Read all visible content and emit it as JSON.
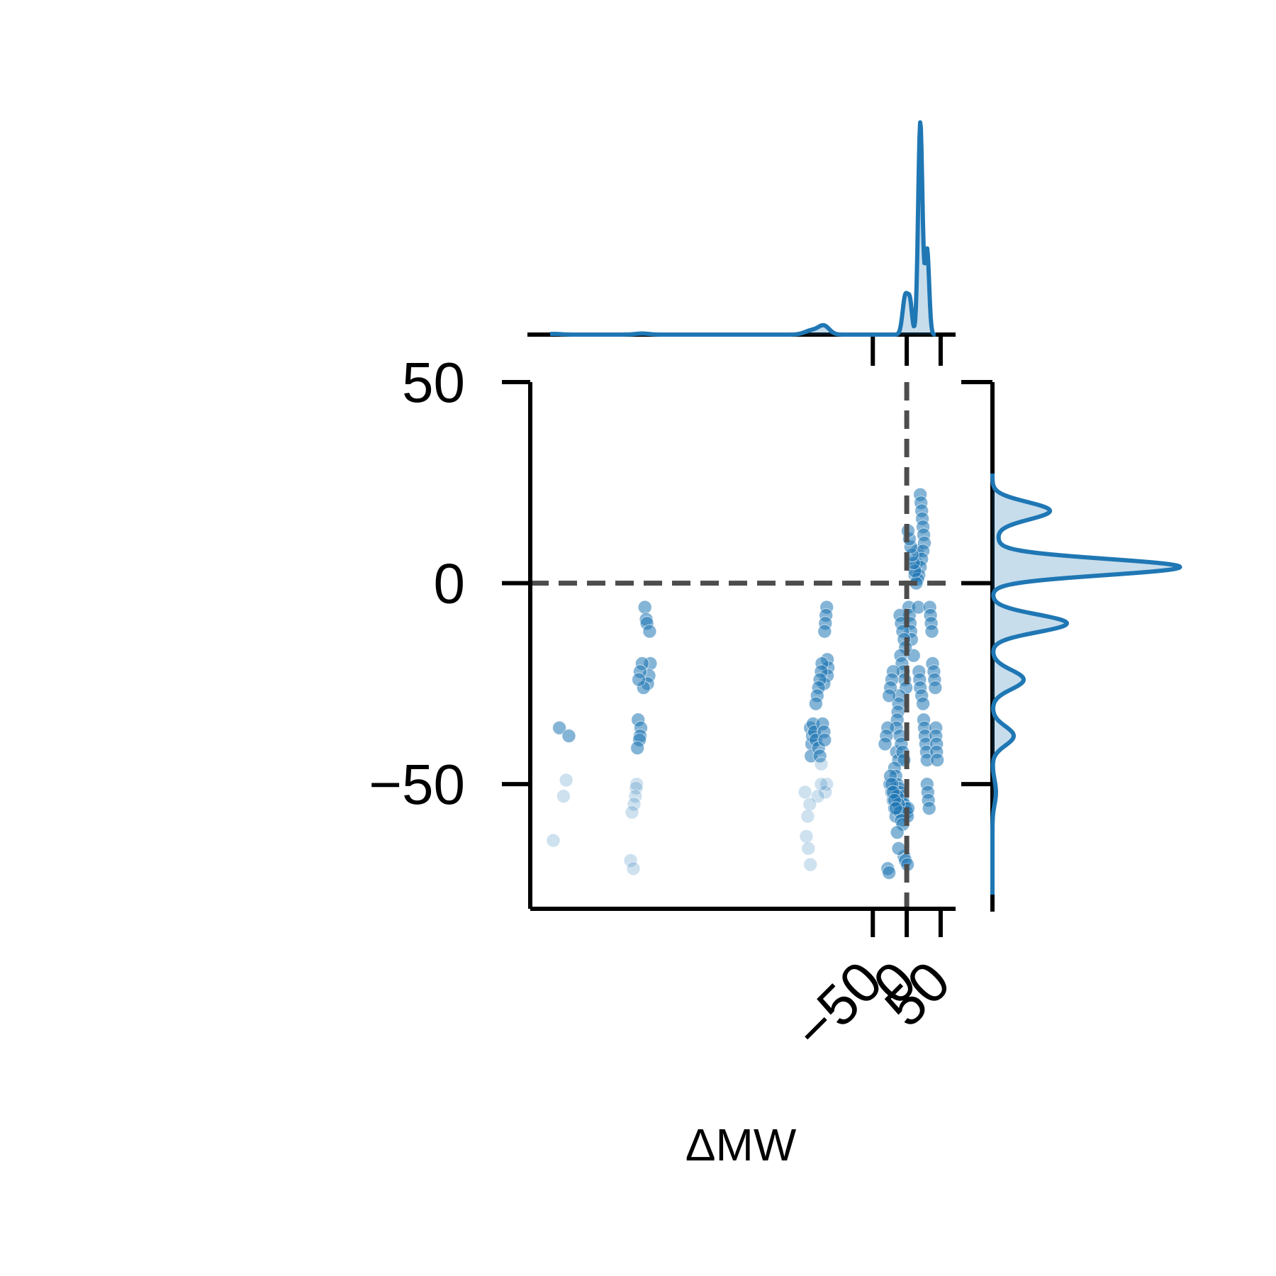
{
  "chart_data": {
    "type": "scatter",
    "title": "",
    "xlabel": "ΔMW",
    "ylabel": "",
    "xlim": [
      -555,
      72
    ],
    "ylim": [
      -81,
      50
    ],
    "xticks": [
      "−50",
      "0",
      "50"
    ],
    "xtick_values": [
      -50,
      0,
      50
    ],
    "yticks": [
      "50",
      "0",
      "−50"
    ],
    "ytick_values": [
      50,
      0,
      -50
    ],
    "reference_lines": [
      {
        "axis": "x",
        "value": 0,
        "style": "dashed"
      },
      {
        "axis": "y",
        "value": 0,
        "style": "dashed"
      }
    ],
    "marginal_x": {
      "type": "kde",
      "peak_x": 20
    },
    "marginal_y": {
      "type": "kde",
      "peaks_y": [
        18,
        4,
        -10,
        -24,
        -38
      ]
    },
    "grid": false,
    "legend": "none",
    "colors": {
      "points": "#1f77b4",
      "reference": "#4d4d4d",
      "axes": "#000000"
    },
    "series": [
      {
        "x": [
          -512,
          -498,
          -502,
          -506,
          -521
        ],
        "y": [
          -36,
          -38,
          -49,
          -53,
          -64
        ]
      },
      {
        "x": [
          -386,
          -384,
          -383,
          -379,
          -378,
          -380,
          -382,
          -388,
          -390,
          -393,
          -395,
          -396,
          -392,
          -393,
          -394,
          -397,
          -398,
          -399,
          -400,
          -402,
          -405,
          -407,
          -403
        ],
        "y": [
          -6,
          -9,
          -10,
          -12,
          -20,
          -23,
          -25,
          -26,
          -20,
          -22,
          -24,
          -34,
          -36,
          -38,
          -39,
          -41,
          -50,
          -51,
          -53,
          -55,
          -57,
          -69,
          -71
        ]
      },
      {
        "x": [
          -118,
          -119,
          -120,
          -121,
          -117,
          -116,
          -117,
          -122,
          -125,
          -126,
          -128,
          -130,
          -132,
          -134,
          -140,
          -141,
          -142,
          -139,
          -138,
          -136,
          -134,
          -130,
          -128,
          -126,
          -124,
          -122,
          -121,
          -118,
          -120,
          -126,
          -131,
          -143,
          -150,
          -146,
          -148,
          -145,
          -142
        ],
        "y": [
          -6,
          -8,
          -10,
          -12,
          -19,
          -21,
          -23,
          -25,
          -20,
          -22,
          -24,
          -26,
          -28,
          -30,
          -40,
          -43,
          -36,
          -38,
          -35,
          -37,
          -39,
          -41,
          -43,
          -45,
          -35,
          -37,
          -39,
          -50,
          -52,
          -50,
          -53,
          -55,
          -52,
          -58,
          -63,
          -66,
          -70
        ]
      },
      {
        "x": [
          3,
          4,
          5,
          6,
          7,
          10,
          12,
          14,
          16,
          17,
          18,
          19,
          20,
          22,
          24,
          25,
          26,
          27,
          28,
          29,
          30,
          30,
          31,
          32,
          33,
          34,
          35,
          36,
          37,
          38,
          40,
          41,
          42,
          43,
          43,
          44,
          44,
          45
        ],
        "y": [
          -6,
          -8,
          -10,
          -12,
          -14,
          -18,
          2,
          5,
          8,
          -6,
          -22,
          -24,
          -26,
          -28,
          -30,
          -34,
          -36,
          -38,
          -40,
          -42,
          -44,
          -50,
          -52,
          -54,
          -56,
          -6,
          -8,
          -10,
          -12,
          -20,
          -22,
          -24,
          -26,
          -36,
          -38,
          -40,
          -42,
          -44
        ]
      },
      {
        "x": [
          -10,
          -8,
          -6,
          -4,
          -2,
          -9,
          -7,
          -5,
          -3,
          -1,
          -11,
          -12,
          -13,
          -14,
          -15,
          -20,
          -22,
          -24,
          -26,
          -28,
          -30,
          -32,
          -15,
          -12,
          -10,
          -8,
          -6,
          -4,
          -18,
          -16,
          -14,
          -12,
          -10,
          -8,
          -6,
          -4,
          -2,
          0,
          1,
          2,
          -25,
          -22,
          -20,
          -18,
          -16,
          -14,
          -12,
          -10,
          -8,
          -6,
          -4,
          -2,
          1,
          -28,
          -26,
          -24,
          -22,
          -20,
          -18,
          -16,
          -14,
          -12
        ],
        "y": [
          -8,
          -10,
          -12,
          -14,
          -16,
          -18,
          -20,
          -22,
          -24,
          -26,
          -28,
          -30,
          -32,
          -34,
          -36,
          -22,
          -24,
          -26,
          -28,
          -36,
          -38,
          -40,
          -42,
          -44,
          -38,
          -40,
          -42,
          -44,
          -46,
          -48,
          -50,
          -51,
          -52,
          -53,
          -54,
          -55,
          -56,
          -57,
          -58,
          -56,
          -50,
          -52,
          -54,
          -56,
          -58,
          -53,
          -55,
          -57,
          -59,
          -60,
          -68,
          -69,
          -70,
          -71,
          -72,
          -48,
          -50,
          -52,
          -54,
          -56,
          -62,
          -66
        ]
      },
      {
        "x": [
          20,
          21,
          22,
          23,
          24,
          25,
          26,
          24,
          22,
          20,
          18,
          16,
          14,
          12,
          10,
          8,
          6,
          4,
          2
        ],
        "y": [
          22,
          20,
          18,
          16,
          14,
          12,
          10,
          8,
          6,
          4,
          2,
          1,
          0,
          3,
          5,
          7,
          9,
          11,
          13
        ]
      }
    ]
  }
}
